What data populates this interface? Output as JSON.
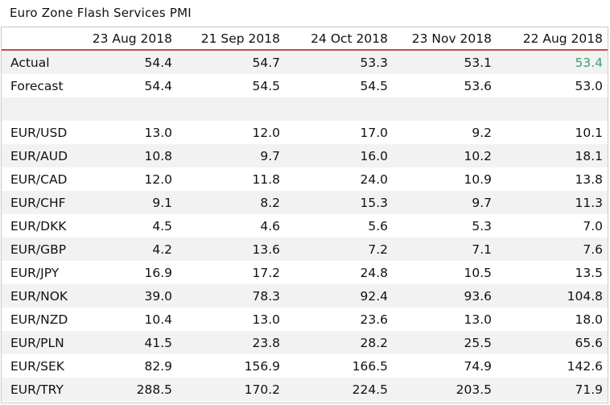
{
  "title": "Euro Zone Flash Services PMI",
  "columns": [
    "23 Aug 2018",
    "21 Sep 2018",
    "24 Oct 2018",
    "23 Nov 2018",
    "22 Aug 2018"
  ],
  "colors": {
    "header_rule": "#c0504d",
    "stripe": "#f2f2f2",
    "highlight": "#3aa06e",
    "frame": "#c8c8c8"
  },
  "rows": [
    {
      "label": "Actual",
      "values": [
        "54.4",
        "54.7",
        "53.3",
        "53.1",
        "53.4"
      ]
    },
    {
      "label": "Forecast",
      "values": [
        "54.4",
        "54.5",
        "54.5",
        "53.6",
        "53.0"
      ]
    },
    {
      "label": "",
      "values": [
        "",
        "",
        "",
        "",
        ""
      ]
    },
    {
      "label": "EUR/USD",
      "values": [
        "13.0",
        "12.0",
        "17.0",
        "9.2",
        "10.1"
      ]
    },
    {
      "label": "EUR/AUD",
      "values": [
        "10.8",
        "9.7",
        "16.0",
        "10.2",
        "18.1"
      ]
    },
    {
      "label": "EUR/CAD",
      "values": [
        "12.0",
        "11.8",
        "24.0",
        "10.9",
        "13.8"
      ]
    },
    {
      "label": "EUR/CHF",
      "values": [
        "9.1",
        "8.2",
        "15.3",
        "9.7",
        "11.3"
      ]
    },
    {
      "label": "EUR/DKK",
      "values": [
        "4.5",
        "4.6",
        "5.6",
        "5.3",
        "7.0"
      ]
    },
    {
      "label": "EUR/GBP",
      "values": [
        "4.2",
        "13.6",
        "7.2",
        "7.1",
        "7.6"
      ]
    },
    {
      "label": "EUR/JPY",
      "values": [
        "16.9",
        "17.2",
        "24.8",
        "10.5",
        "13.5"
      ]
    },
    {
      "label": "EUR/NOK",
      "values": [
        "39.0",
        "78.3",
        "92.4",
        "93.6",
        "104.8"
      ]
    },
    {
      "label": "EUR/NZD",
      "values": [
        "10.4",
        "13.0",
        "23.6",
        "13.0",
        "18.0"
      ]
    },
    {
      "label": "EUR/PLN",
      "values": [
        "41.5",
        "23.8",
        "28.2",
        "25.5",
        "65.6"
      ]
    },
    {
      "label": "EUR/SEK",
      "values": [
        "82.9",
        "156.9",
        "166.5",
        "74.9",
        "142.6"
      ]
    },
    {
      "label": "EUR/TRY",
      "values": [
        "288.5",
        "170.2",
        "224.5",
        "203.5",
        "71.9"
      ]
    }
  ]
}
